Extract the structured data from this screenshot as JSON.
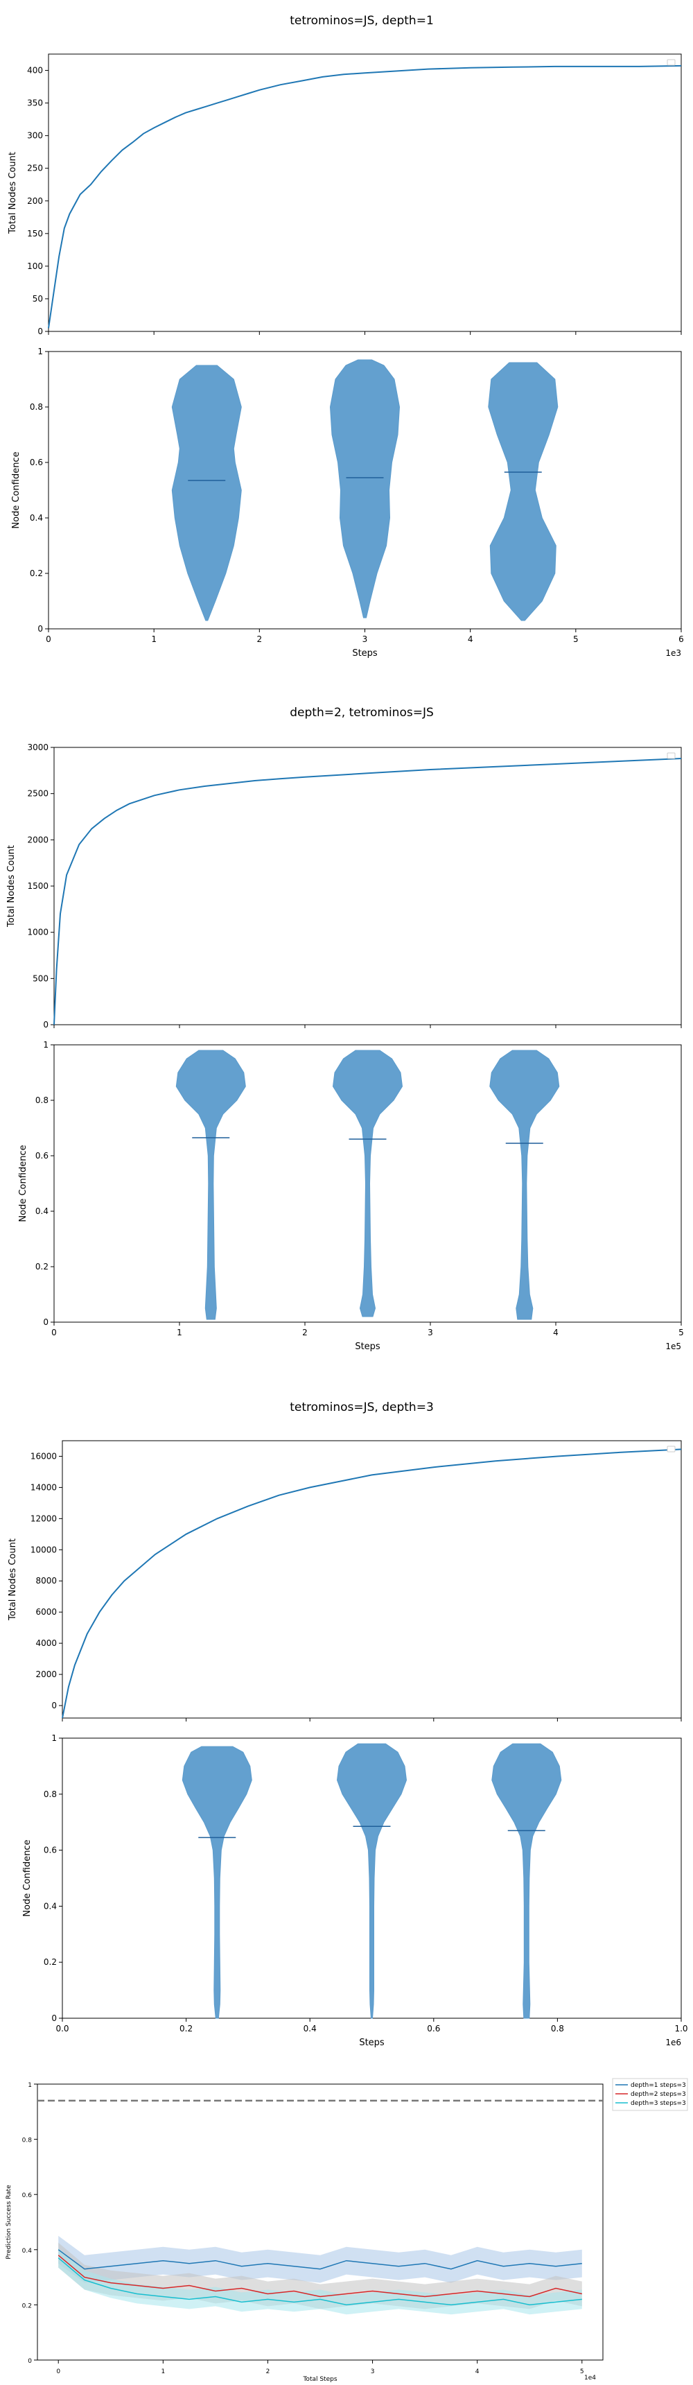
{
  "chart_data": [
    {
      "type": "line",
      "title": "tetrominos=JS, depth=1",
      "ylabel": "Total Nodes Count",
      "xlim": [
        0,
        6000
      ],
      "ylim": [
        0,
        425
      ],
      "yticks": [
        0,
        50,
        100,
        150,
        200,
        250,
        300,
        350,
        400
      ],
      "legend": "top-right (empty)",
      "x": [
        0,
        50,
        100,
        150,
        200,
        300,
        400,
        500,
        600,
        700,
        800,
        900,
        1000,
        1100,
        1200,
        1300,
        1400,
        1500,
        1600,
        1700,
        1800,
        1900,
        2000,
        2200,
        2400,
        2600,
        2800,
        3000,
        3200,
        3400,
        3600,
        4000,
        4400,
        4800,
        5200,
        5600,
        6000
      ],
      "y": [
        5,
        60,
        115,
        158,
        180,
        210,
        225,
        245,
        262,
        278,
        290,
        303,
        312,
        320,
        328,
        335,
        340,
        345,
        350,
        355,
        360,
        365,
        370,
        378,
        384,
        390,
        394,
        396,
        398,
        400,
        402,
        404,
        405,
        406,
        406,
        406,
        407
      ]
    },
    {
      "type": "violin",
      "ylabel": "Node Confidence",
      "xlabel": "Steps",
      "x_multiplier": "1e3",
      "xlim": [
        0,
        6000
      ],
      "xticks": [
        0,
        1000,
        2000,
        3000,
        4000,
        5000,
        6000
      ],
      "xtick_labels": [
        "0",
        "1",
        "2",
        "3",
        "4",
        "5",
        "6"
      ],
      "ylim": [
        0,
        1
      ],
      "yticks": [
        0.0,
        0.2,
        0.4,
        0.6,
        0.8,
        1.0
      ],
      "color": "#5b9bcc",
      "violins": [
        {
          "position": 1500,
          "min": 0.03,
          "max": 0.95,
          "mean": 0.535,
          "profile": [
            [
              0.03,
              0.03
            ],
            [
              0.1,
              0.25
            ],
            [
              0.2,
              0.55
            ],
            [
              0.3,
              0.78
            ],
            [
              0.4,
              0.92
            ],
            [
              0.5,
              1.0
            ],
            [
              0.6,
              0.82
            ],
            [
              0.65,
              0.78
            ],
            [
              0.7,
              0.85
            ],
            [
              0.8,
              1.0
            ],
            [
              0.9,
              0.78
            ],
            [
              0.95,
              0.3
            ]
          ]
        },
        {
          "position": 3000,
          "min": 0.04,
          "max": 0.97,
          "mean": 0.545,
          "profile": [
            [
              0.04,
              0.04
            ],
            [
              0.1,
              0.15
            ],
            [
              0.2,
              0.35
            ],
            [
              0.3,
              0.62
            ],
            [
              0.4,
              0.72
            ],
            [
              0.5,
              0.7
            ],
            [
              0.6,
              0.78
            ],
            [
              0.7,
              0.95
            ],
            [
              0.8,
              1.0
            ],
            [
              0.9,
              0.85
            ],
            [
              0.95,
              0.55
            ],
            [
              0.97,
              0.2
            ]
          ]
        },
        {
          "position": 4500,
          "min": 0.03,
          "max": 0.96,
          "mean": 0.565,
          "profile": [
            [
              0.03,
              0.05
            ],
            [
              0.1,
              0.55
            ],
            [
              0.2,
              0.92
            ],
            [
              0.3,
              0.95
            ],
            [
              0.4,
              0.55
            ],
            [
              0.5,
              0.35
            ],
            [
              0.6,
              0.45
            ],
            [
              0.7,
              0.75
            ],
            [
              0.8,
              1.0
            ],
            [
              0.9,
              0.92
            ],
            [
              0.96,
              0.4
            ]
          ]
        }
      ]
    },
    {
      "type": "line",
      "title": "depth=2, tetrominos=JS",
      "ylabel": "Total Nodes Count",
      "xlim": [
        0,
        500000
      ],
      "ylim": [
        0,
        3000
      ],
      "yticks": [
        0,
        500,
        1000,
        1500,
        2000,
        2500,
        3000
      ],
      "legend": "top-right (empty)",
      "x": [
        0,
        2000,
        5000,
        10000,
        20000,
        30000,
        40000,
        50000,
        60000,
        80000,
        100000,
        120000,
        140000,
        160000,
        180000,
        200000,
        250000,
        300000,
        350000,
        400000,
        450000,
        500000
      ],
      "y": [
        0,
        600,
        1200,
        1620,
        1950,
        2120,
        2230,
        2320,
        2390,
        2480,
        2540,
        2580,
        2610,
        2640,
        2660,
        2680,
        2720,
        2760,
        2790,
        2820,
        2850,
        2880
      ]
    },
    {
      "type": "violin",
      "ylabel": "Node Confidence",
      "xlabel": "Steps",
      "x_multiplier": "1e5",
      "xlim": [
        0,
        500000
      ],
      "xticks": [
        0,
        100000,
        200000,
        300000,
        400000,
        500000
      ],
      "xtick_labels": [
        "0",
        "1",
        "2",
        "3",
        "4",
        "5"
      ],
      "ylim": [
        0,
        1
      ],
      "yticks": [
        0.0,
        0.2,
        0.4,
        0.6,
        0.8,
        1.0
      ],
      "color": "#5b9bcc",
      "violins": [
        {
          "position": 125000,
          "min": 0.01,
          "max": 0.98,
          "mean": 0.665,
          "profile": [
            [
              0.01,
              0.12
            ],
            [
              0.05,
              0.16
            ],
            [
              0.1,
              0.14
            ],
            [
              0.2,
              0.1
            ],
            [
              0.3,
              0.09
            ],
            [
              0.4,
              0.08
            ],
            [
              0.5,
              0.07
            ],
            [
              0.6,
              0.08
            ],
            [
              0.7,
              0.16
            ],
            [
              0.75,
              0.35
            ],
            [
              0.8,
              0.75
            ],
            [
              0.85,
              1.0
            ],
            [
              0.9,
              0.95
            ],
            [
              0.95,
              0.7
            ],
            [
              0.98,
              0.35
            ]
          ]
        },
        {
          "position": 250000,
          "min": 0.02,
          "max": 0.98,
          "mean": 0.66,
          "profile": [
            [
              0.02,
              0.15
            ],
            [
              0.05,
              0.22
            ],
            [
              0.1,
              0.14
            ],
            [
              0.2,
              0.1
            ],
            [
              0.3,
              0.08
            ],
            [
              0.4,
              0.07
            ],
            [
              0.5,
              0.06
            ],
            [
              0.6,
              0.08
            ],
            [
              0.7,
              0.16
            ],
            [
              0.75,
              0.35
            ],
            [
              0.8,
              0.75
            ],
            [
              0.85,
              1.0
            ],
            [
              0.9,
              0.95
            ],
            [
              0.95,
              0.7
            ],
            [
              0.98,
              0.35
            ]
          ]
        },
        {
          "position": 375000,
          "min": 0.01,
          "max": 0.98,
          "mean": 0.645,
          "profile": [
            [
              0.01,
              0.2
            ],
            [
              0.05,
              0.24
            ],
            [
              0.1,
              0.15
            ],
            [
              0.2,
              0.1
            ],
            [
              0.3,
              0.08
            ],
            [
              0.4,
              0.07
            ],
            [
              0.5,
              0.06
            ],
            [
              0.6,
              0.08
            ],
            [
              0.7,
              0.16
            ],
            [
              0.75,
              0.35
            ],
            [
              0.8,
              0.75
            ],
            [
              0.85,
              1.0
            ],
            [
              0.9,
              0.95
            ],
            [
              0.95,
              0.7
            ],
            [
              0.98,
              0.35
            ]
          ]
        }
      ]
    },
    {
      "type": "line",
      "title": "tetrominos=JS, depth=3",
      "ylabel": "Total Nodes Count",
      "xlim": [
        0,
        1000000
      ],
      "ylim": [
        -800,
        17000
      ],
      "yticks": [
        0,
        2000,
        4000,
        6000,
        8000,
        10000,
        12000,
        14000,
        16000
      ],
      "legend": "top-right (empty)",
      "x": [
        0,
        10000,
        20000,
        40000,
        60000,
        80000,
        100000,
        150000,
        200000,
        250000,
        300000,
        350000,
        400000,
        450000,
        500000,
        600000,
        700000,
        800000,
        900000,
        1000000
      ],
      "y": [
        -800,
        1200,
        2600,
        4600,
        6000,
        7100,
        8000,
        9700,
        11000,
        12000,
        12800,
        13500,
        14000,
        14400,
        14800,
        15300,
        15700,
        16000,
        16250,
        16450
      ]
    },
    {
      "type": "violin",
      "ylabel": "Node Confidence",
      "xlabel": "Steps",
      "x_multiplier": "1e6",
      "xlim": [
        0,
        1000000
      ],
      "xticks": [
        0,
        200000,
        400000,
        600000,
        800000,
        1000000
      ],
      "xtick_labels": [
        "0.0",
        "0.2",
        "0.4",
        "0.6",
        "0.8",
        "1.0"
      ],
      "ylim": [
        0,
        1
      ],
      "yticks": [
        0.0,
        0.2,
        0.4,
        0.6,
        0.8,
        1.0
      ],
      "color": "#5b9bcc",
      "violins": [
        {
          "position": 250000,
          "min": 0.0,
          "max": 0.97,
          "mean": 0.645,
          "profile": [
            [
              0.0,
              0.04
            ],
            [
              0.05,
              0.08
            ],
            [
              0.1,
              0.09
            ],
            [
              0.2,
              0.08
            ],
            [
              0.3,
              0.07
            ],
            [
              0.4,
              0.07
            ],
            [
              0.5,
              0.08
            ],
            [
              0.6,
              0.12
            ],
            [
              0.65,
              0.2
            ],
            [
              0.7,
              0.38
            ],
            [
              0.75,
              0.62
            ],
            [
              0.8,
              0.85
            ],
            [
              0.85,
              1.0
            ],
            [
              0.9,
              0.95
            ],
            [
              0.95,
              0.75
            ],
            [
              0.97,
              0.45
            ]
          ]
        },
        {
          "position": 500000,
          "min": 0.0,
          "max": 0.98,
          "mean": 0.685,
          "profile": [
            [
              0.0,
              0.02
            ],
            [
              0.05,
              0.05
            ],
            [
              0.1,
              0.06
            ],
            [
              0.2,
              0.06
            ],
            [
              0.3,
              0.06
            ],
            [
              0.4,
              0.06
            ],
            [
              0.5,
              0.07
            ],
            [
              0.6,
              0.1
            ],
            [
              0.65,
              0.18
            ],
            [
              0.7,
              0.35
            ],
            [
              0.75,
              0.6
            ],
            [
              0.8,
              0.85
            ],
            [
              0.85,
              1.0
            ],
            [
              0.9,
              0.95
            ],
            [
              0.95,
              0.75
            ],
            [
              0.98,
              0.4
            ]
          ]
        },
        {
          "position": 750000,
          "min": 0.0,
          "max": 0.98,
          "mean": 0.67,
          "profile": [
            [
              0.0,
              0.08
            ],
            [
              0.05,
              0.1
            ],
            [
              0.1,
              0.09
            ],
            [
              0.2,
              0.07
            ],
            [
              0.3,
              0.07
            ],
            [
              0.4,
              0.07
            ],
            [
              0.5,
              0.08
            ],
            [
              0.6,
              0.11
            ],
            [
              0.65,
              0.18
            ],
            [
              0.7,
              0.36
            ],
            [
              0.75,
              0.6
            ],
            [
              0.8,
              0.85
            ],
            [
              0.85,
              1.0
            ],
            [
              0.9,
              0.95
            ],
            [
              0.95,
              0.75
            ],
            [
              0.98,
              0.4
            ]
          ]
        }
      ]
    },
    {
      "type": "line",
      "xlabel": "Total Steps",
      "ylabel": "Prediction Success Rate",
      "x_multiplier": "1e4",
      "xlim": [
        -2000,
        52000
      ],
      "xticks": [
        0,
        10000,
        20000,
        30000,
        40000,
        50000
      ],
      "xtick_labels": [
        "0",
        "1",
        "2",
        "3",
        "4",
        "5"
      ],
      "ylim": [
        0,
        1
      ],
      "yticks": [
        0.0,
        0.2,
        0.4,
        0.6,
        0.8,
        1.0
      ],
      "reference_line": {
        "y": 0.94,
        "style": "dashed",
        "color": "#777777"
      },
      "legend": "outside top-right",
      "series": [
        {
          "name": "depth=1 steps=3",
          "color": "#1f77b4",
          "band_color": "#a9c7e8",
          "x": [
            0,
            2500,
            5000,
            7500,
            10000,
            12500,
            15000,
            17500,
            20000,
            22500,
            25000,
            27500,
            30000,
            32500,
            35000,
            37500,
            40000,
            42500,
            45000,
            47500,
            50000
          ],
          "y": [
            0.4,
            0.33,
            0.34,
            0.35,
            0.36,
            0.35,
            0.36,
            0.34,
            0.35,
            0.34,
            0.33,
            0.36,
            0.35,
            0.34,
            0.35,
            0.33,
            0.36,
            0.34,
            0.35,
            0.34,
            0.35
          ]
        },
        {
          "name": "depth=2 steps=3",
          "color": "#d62728",
          "band_color": "#c2c2c2",
          "x": [
            0,
            2500,
            5000,
            7500,
            10000,
            12500,
            15000,
            17500,
            20000,
            22500,
            25000,
            27500,
            30000,
            32500,
            35000,
            37500,
            40000,
            42500,
            45000,
            47500,
            50000
          ],
          "y": [
            0.38,
            0.3,
            0.28,
            0.27,
            0.26,
            0.27,
            0.25,
            0.26,
            0.24,
            0.25,
            0.23,
            0.24,
            0.25,
            0.24,
            0.23,
            0.24,
            0.25,
            0.24,
            0.23,
            0.26,
            0.24
          ]
        },
        {
          "name": "depth=3 steps=3",
          "color": "#17becf",
          "band_color": "#a8e6ec",
          "x": [
            0,
            2500,
            5000,
            7500,
            10000,
            12500,
            15000,
            17500,
            20000,
            22500,
            25000,
            27500,
            30000,
            32500,
            35000,
            37500,
            40000,
            42500,
            45000,
            47500,
            50000
          ],
          "y": [
            0.37,
            0.29,
            0.26,
            0.24,
            0.23,
            0.22,
            0.23,
            0.21,
            0.22,
            0.21,
            0.22,
            0.2,
            0.21,
            0.22,
            0.21,
            0.2,
            0.21,
            0.22,
            0.2,
            0.21,
            0.22
          ]
        }
      ]
    }
  ]
}
